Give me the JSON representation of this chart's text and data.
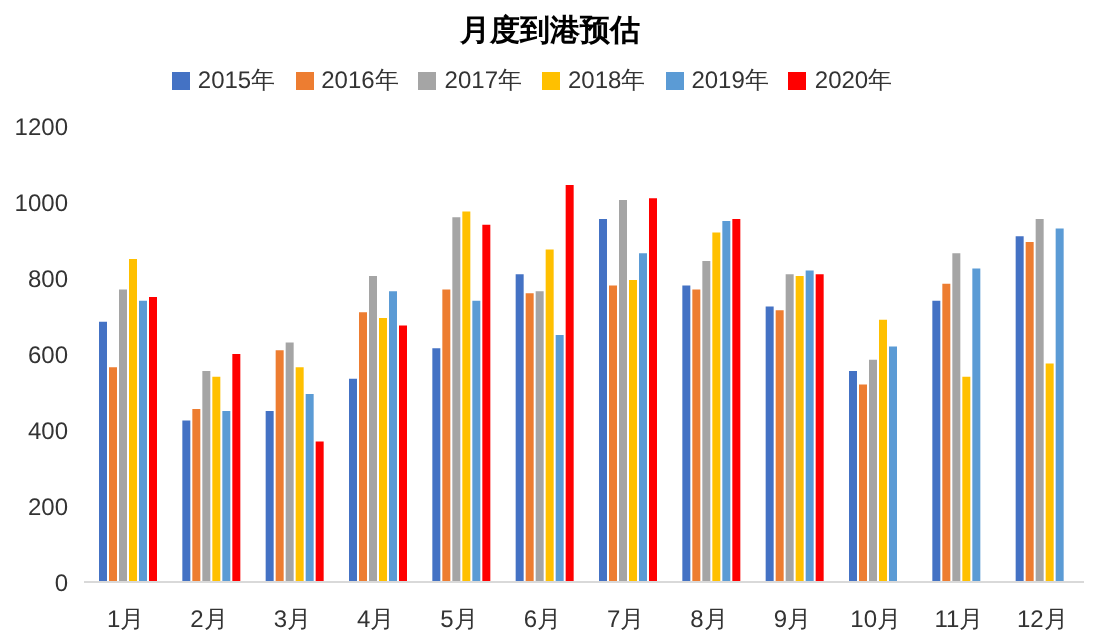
{
  "chart_data": {
    "type": "bar",
    "title": "月度到港预估",
    "categories": [
      "1月",
      "2月",
      "3月",
      "4月",
      "5月",
      "6月",
      "7月",
      "8月",
      "9月",
      "10月",
      "11月",
      "12月"
    ],
    "series": [
      {
        "name": "2015年",
        "color": "#4472c4",
        "values": [
          685,
          425,
          450,
          535,
          615,
          810,
          955,
          780,
          725,
          555,
          740,
          910
        ]
      },
      {
        "name": "2016年",
        "color": "#ed7d31",
        "values": [
          565,
          455,
          610,
          710,
          770,
          760,
          780,
          770,
          715,
          520,
          785,
          895
        ]
      },
      {
        "name": "2017年",
        "color": "#a5a5a5",
        "values": [
          770,
          555,
          630,
          805,
          960,
          765,
          1005,
          845,
          810,
          585,
          865,
          955
        ]
      },
      {
        "name": "2018年",
        "color": "#ffc000",
        "values": [
          850,
          540,
          565,
          695,
          975,
          875,
          795,
          920,
          805,
          690,
          540,
          575
        ]
      },
      {
        "name": "2019年",
        "color": "#5b9bd5",
        "values": [
          740,
          450,
          495,
          765,
          740,
          650,
          865,
          950,
          820,
          620,
          825,
          930
        ]
      },
      {
        "name": "2020年",
        "color": "#ff0000",
        "values": [
          750,
          600,
          370,
          675,
          940,
          1045,
          1010,
          955,
          810,
          null,
          null,
          null
        ]
      }
    ],
    "ylim": [
      0,
      1200
    ],
    "yticks": [
      0,
      200,
      400,
      600,
      800,
      1000,
      1200
    ],
    "grid": false,
    "legend": "top"
  }
}
